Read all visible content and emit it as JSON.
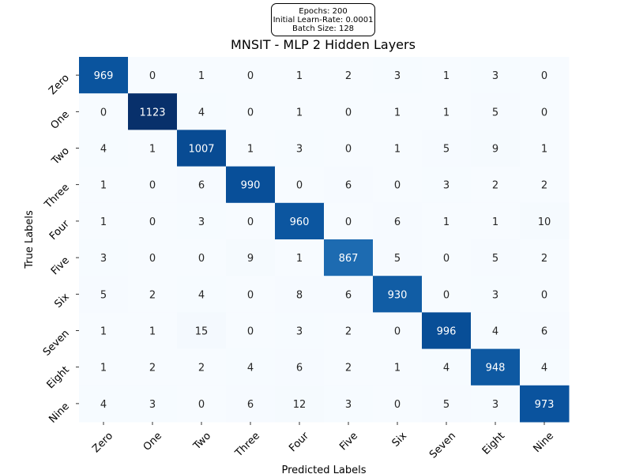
{
  "info_box": {
    "epochs": "Epochs: 200",
    "learn_rate": "Initial Learn-Rate: 0.0001",
    "batch_size": "Batch Size: 128"
  },
  "chart_data": {
    "type": "heatmap",
    "title": "MNSIT - MLP 2 Hidden Layers",
    "xlabel": "Predicted Labels",
    "ylabel": "True Labels",
    "x_categories": [
      "Zero",
      "One",
      "Two",
      "Three",
      "Four",
      "Five",
      "Six",
      "Seven",
      "Eight",
      "Nine"
    ],
    "y_categories": [
      "Zero",
      "One",
      "Two",
      "Three",
      "Four",
      "Five",
      "Six",
      "Seven",
      "Eight",
      "Nine"
    ],
    "colormap": "Blues",
    "values": [
      [
        969,
        0,
        1,
        0,
        1,
        2,
        3,
        1,
        3,
        0
      ],
      [
        0,
        1123,
        4,
        0,
        1,
        0,
        1,
        1,
        5,
        0
      ],
      [
        4,
        1,
        1007,
        1,
        3,
        0,
        1,
        5,
        9,
        1
      ],
      [
        1,
        0,
        6,
        990,
        0,
        6,
        0,
        3,
        2,
        2
      ],
      [
        1,
        0,
        3,
        0,
        960,
        0,
        6,
        1,
        1,
        10
      ],
      [
        3,
        0,
        0,
        9,
        1,
        867,
        5,
        0,
        5,
        2
      ],
      [
        5,
        2,
        4,
        0,
        8,
        6,
        930,
        0,
        3,
        0
      ],
      [
        1,
        1,
        15,
        0,
        3,
        2,
        0,
        996,
        4,
        6
      ],
      [
        1,
        2,
        2,
        4,
        6,
        2,
        1,
        4,
        948,
        4
      ],
      [
        4,
        3,
        0,
        6,
        12,
        3,
        0,
        5,
        3,
        973
      ]
    ]
  }
}
